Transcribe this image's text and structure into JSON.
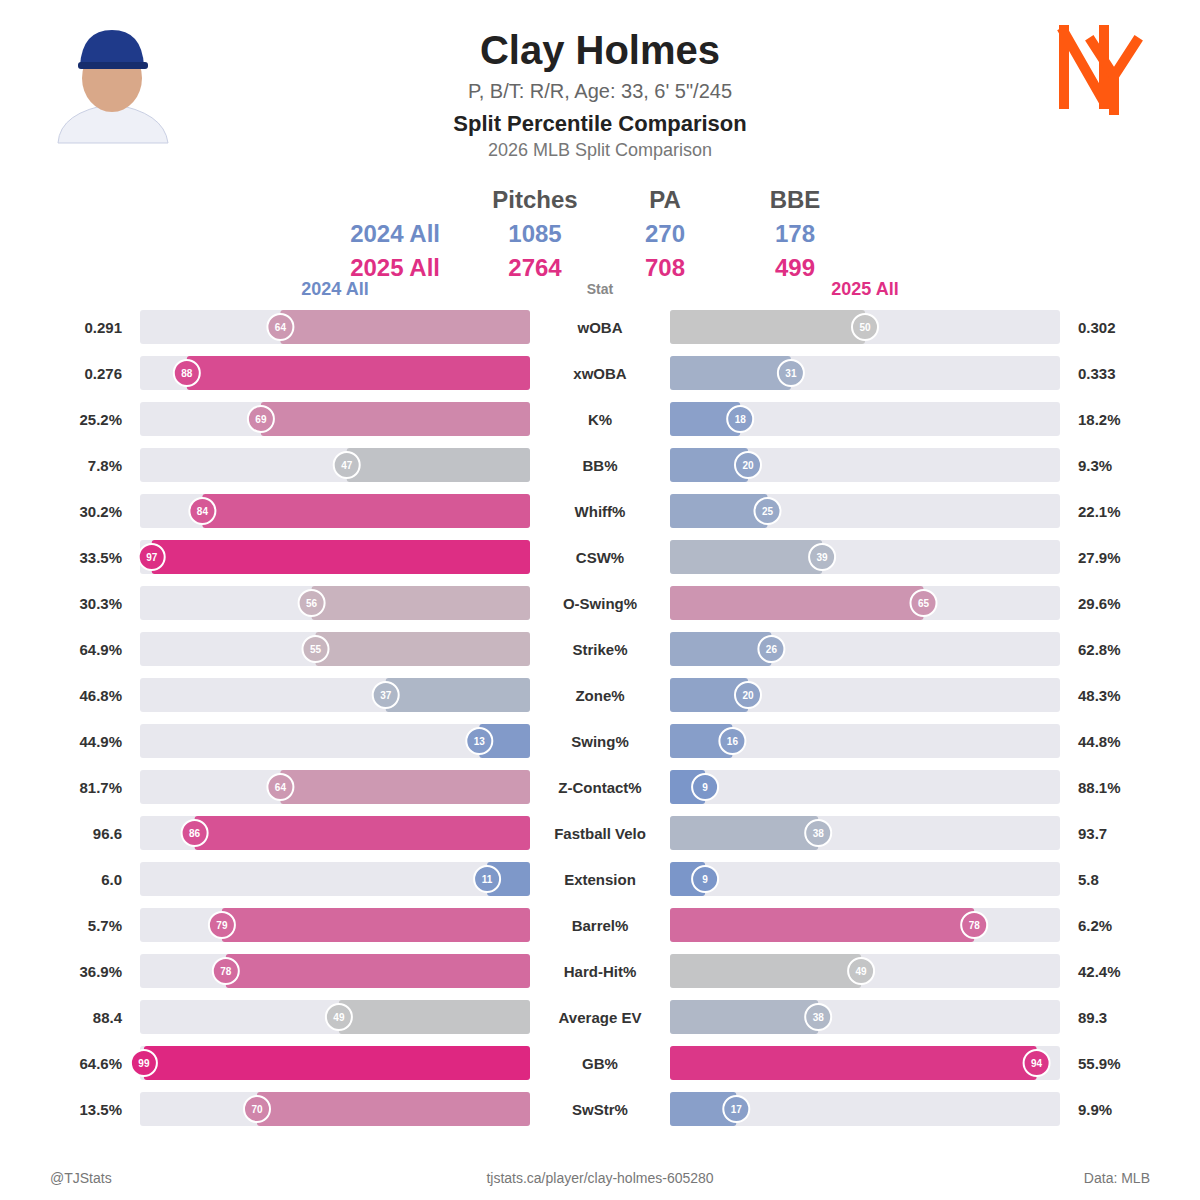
{
  "header": {
    "title": "Clay Holmes",
    "subtitle": "P, B/T: R/R, Age: 33, 6' 5\"/245",
    "heading": "Split Percentile Comparison",
    "subheading": "2026 MLB Split Comparison"
  },
  "summary": {
    "columns": [
      "Pitches",
      "PA",
      "BBE"
    ],
    "rows": [
      {
        "name": "2024 All",
        "values": [
          1085,
          270,
          178
        ]
      },
      {
        "name": "2025 All",
        "values": [
          2764,
          708,
          499
        ]
      }
    ]
  },
  "chart_data": {
    "type": "bar",
    "orientation": "horizontal",
    "data_labels": true,
    "tick_labels": false,
    "ylabel": "Stat",
    "xlim": [
      0,
      100
    ],
    "colors": [
      "#6a8bca",
      "#c6c6c6",
      "#de2480"
    ],
    "categories": [
      "wOBA",
      "xwOBA",
      "K%",
      "BB%",
      "Whiff%",
      "CSW%",
      "O-Swing%",
      "Strike%",
      "Zone%",
      "Swing%",
      "Z-Contact%",
      "Fastball Velo",
      "Extension",
      "Barrel%",
      "Hard-Hit%",
      "Average EV",
      "GB%",
      "SwStr%"
    ],
    "series": [
      {
        "name": "2024 All",
        "color": "#6e8bc6",
        "values": [
          64,
          88,
          69,
          47,
          84,
          97,
          56,
          55,
          37,
          13,
          64,
          86,
          11,
          79,
          78,
          49,
          99,
          70
        ],
        "stat_labels": [
          "0.291",
          "0.276",
          "25.2%",
          "7.8%",
          "30.2%",
          "33.5%",
          "30.3%",
          "64.9%",
          "46.8%",
          "44.9%",
          "81.7%",
          "96.6",
          "6.0",
          "5.7%",
          "36.9%",
          "88.4",
          "64.6%",
          "13.5%"
        ]
      },
      {
        "name": "2025 All",
        "color": "#df2f84",
        "values": [
          50,
          31,
          18,
          20,
          25,
          39,
          65,
          26,
          20,
          16,
          9,
          38,
          9,
          78,
          49,
          38,
          94,
          17
        ],
        "stat_labels": [
          "0.302",
          "0.333",
          "18.2%",
          "9.3%",
          "22.1%",
          "27.9%",
          "29.6%",
          "62.8%",
          "48.3%",
          "44.8%",
          "88.1%",
          "93.7",
          "5.8",
          "6.2%",
          "42.4%",
          "89.3",
          "55.9%",
          "9.9%"
        ]
      }
    ]
  },
  "footer": {
    "left": "@TJStats",
    "center": "tjstats.ca/player/clay-holmes-605280",
    "right": "Data: MLB"
  }
}
